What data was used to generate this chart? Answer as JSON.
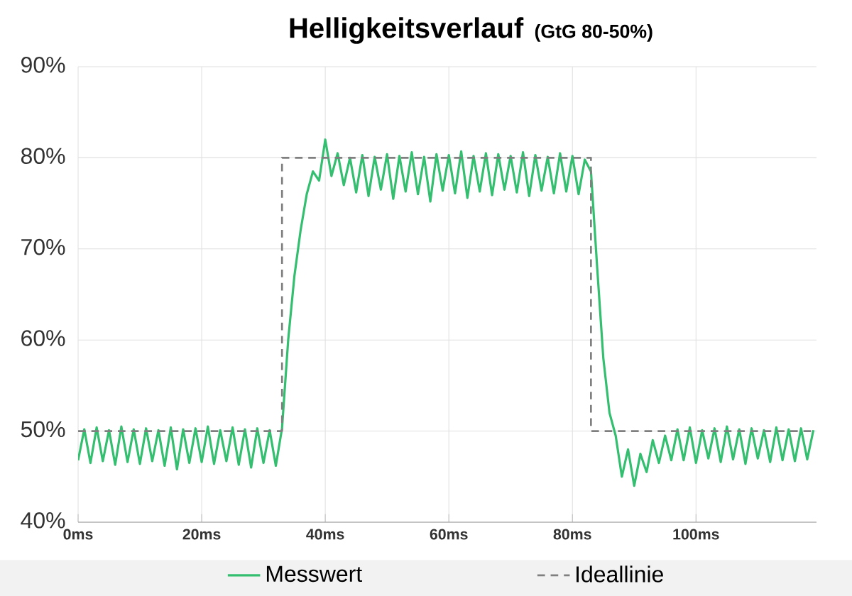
{
  "chart_data": {
    "type": "line",
    "title": "Helligkeitsverlauf",
    "subtitle": "(GtG 80-50%)",
    "xlim": [
      0,
      119.5
    ],
    "ylim": [
      40,
      90
    ],
    "xticks": [
      {
        "value": 0,
        "label": "0ms"
      },
      {
        "value": 20,
        "label": "20ms"
      },
      {
        "value": 40,
        "label": "40ms"
      },
      {
        "value": 60,
        "label": "60ms"
      },
      {
        "value": 80,
        "label": "80ms"
      },
      {
        "value": 100,
        "label": "100ms"
      }
    ],
    "yticks": [
      {
        "value": 40,
        "label": "40%"
      },
      {
        "value": 50,
        "label": "50%"
      },
      {
        "value": 60,
        "label": "60%"
      },
      {
        "value": 70,
        "label": "70%"
      },
      {
        "value": 80,
        "label": "80%"
      },
      {
        "value": 90,
        "label": "90%"
      }
    ],
    "grid": true,
    "legend": "bottom",
    "marker": "none",
    "series": [
      {
        "name": "Messwert",
        "color": "#33bf6f",
        "line_style": "solid",
        "x": [
          0,
          1,
          2,
          3,
          4,
          5,
          6,
          7,
          8,
          9,
          10,
          11,
          12,
          13,
          14,
          15,
          16,
          17,
          18,
          19,
          20,
          21,
          22,
          23,
          24,
          25,
          26,
          27,
          28,
          29,
          30,
          31,
          32,
          33,
          34,
          35,
          36,
          37,
          38,
          39,
          40,
          41,
          42,
          43,
          44,
          45,
          46,
          47,
          48,
          49,
          50,
          51,
          52,
          53,
          54,
          55,
          56,
          57,
          58,
          59,
          60,
          61,
          62,
          63,
          64,
          65,
          66,
          67,
          68,
          69,
          70,
          71,
          72,
          73,
          74,
          75,
          76,
          77,
          78,
          79,
          80,
          81,
          82,
          83,
          84,
          85,
          86,
          87,
          88,
          89,
          90,
          91,
          92,
          93,
          94,
          95,
          96,
          97,
          98,
          99,
          100,
          101,
          102,
          103,
          104,
          105,
          106,
          107,
          108,
          109,
          110,
          111,
          112,
          113,
          114,
          115,
          116,
          117,
          118,
          119
        ],
        "values": [
          46.8,
          50.2,
          46.5,
          50.4,
          46.7,
          50.1,
          46.3,
          50.5,
          46.6,
          50.2,
          46.4,
          50.3,
          46.7,
          50.1,
          46.2,
          50.4,
          45.8,
          50.2,
          46.5,
          50.3,
          46.6,
          50.5,
          46.4,
          50.1,
          46.7,
          50.4,
          46.3,
          50.2,
          46.0,
          50.3,
          46.5,
          50.1,
          46.2,
          50.3,
          60,
          67,
          72,
          76,
          78.5,
          77.5,
          82,
          78,
          80.5,
          77,
          80,
          76.2,
          80.3,
          75.8,
          80.1,
          76.5,
          80.4,
          75.5,
          80.2,
          76.3,
          80.6,
          76,
          80.1,
          75.2,
          80.4,
          76.4,
          80.3,
          76.1,
          80.7,
          75.6,
          80.2,
          76.3,
          80.5,
          75.9,
          80.4,
          76.5,
          80.2,
          76.2,
          80.6,
          75.8,
          80.3,
          76.4,
          80.1,
          76.1,
          80.5,
          76.3,
          80.2,
          76,
          79.8,
          78.5,
          68,
          58,
          52,
          49.5,
          45,
          48,
          44,
          47.5,
          45.5,
          49,
          46.5,
          49.5,
          46.8,
          50.2,
          46.8,
          50.4,
          46.5,
          50.1,
          47,
          50.3,
          46.6,
          50.5,
          46.9,
          50.2,
          46.4,
          50.3,
          47,
          50.1,
          46.6,
          50.4,
          46.8,
          50.2,
          46.7,
          50.3,
          46.9,
          50.1
        ]
      },
      {
        "name": "Ideallinie",
        "color": "#7f7f7f",
        "line_style": "dashed",
        "x": [
          0,
          33,
          33,
          83,
          83,
          119.5
        ],
        "values": [
          50,
          50,
          80,
          80,
          50,
          50
        ]
      }
    ]
  }
}
